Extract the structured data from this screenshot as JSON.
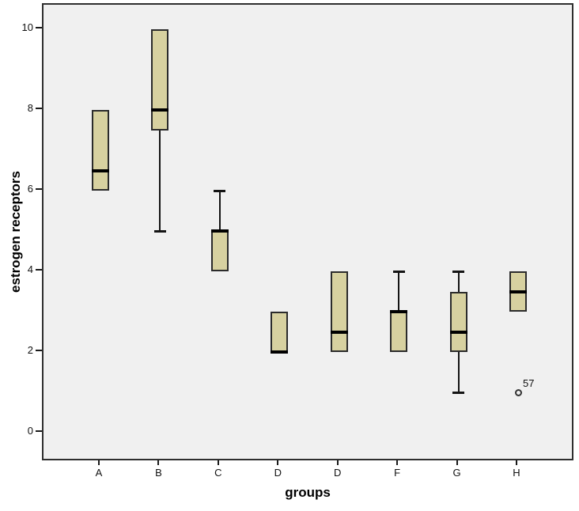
{
  "figure": {
    "y_axis_title": "estrogen receptors",
    "x_axis_title": "groups"
  },
  "chart_data": {
    "type": "boxplot",
    "title": "",
    "xlabel": "groups",
    "ylabel": "estrogen receptors",
    "categories": [
      "A",
      "B",
      "C",
      "D",
      "D",
      "F",
      "G",
      "H"
    ],
    "y_ticks": [
      0,
      2,
      4,
      6,
      8,
      10
    ],
    "ylim": [
      -0.7,
      10.6
    ],
    "grid": false,
    "legend": "none",
    "boxes": [
      {
        "category": "A",
        "q1": 6,
        "median": 6.5,
        "q3": 8,
        "whisker_low": null,
        "whisker_high": null,
        "outliers": []
      },
      {
        "category": "B",
        "q1": 7.5,
        "median": 8,
        "q3": 10,
        "whisker_low": 5,
        "whisker_high": null,
        "outliers": []
      },
      {
        "category": "C",
        "q1": 4,
        "median": 5,
        "q3": 5,
        "whisker_low": null,
        "whisker_high": 6,
        "outliers": []
      },
      {
        "category": "D",
        "q1": 2,
        "median": 2,
        "q3": 3,
        "whisker_low": null,
        "whisker_high": null,
        "outliers": []
      },
      {
        "category": "D",
        "q1": 2,
        "median": 2.5,
        "q3": 4,
        "whisker_low": null,
        "whisker_high": null,
        "outliers": []
      },
      {
        "category": "F",
        "q1": 2,
        "median": 3,
        "q3": 3,
        "whisker_low": null,
        "whisker_high": 4,
        "outliers": []
      },
      {
        "category": "G",
        "q1": 2,
        "median": 2.5,
        "q3": 3.5,
        "whisker_low": 1,
        "whisker_high": 4,
        "outliers": []
      },
      {
        "category": "H",
        "q1": 3,
        "median": 3.5,
        "q3": 4,
        "whisker_low": null,
        "whisker_high": null,
        "outliers": [
          {
            "value": 1,
            "label": "57"
          }
        ]
      }
    ],
    "colors": {
      "box_fill": "#d7d1a0",
      "box_border": "#2b2b2b",
      "median": "#000000",
      "whisker": "#141414",
      "plot_bg": "#f0f0f0",
      "page_bg": "#ffffff",
      "axis_border": "#2e2e2e",
      "tick_text": "#111111"
    }
  }
}
